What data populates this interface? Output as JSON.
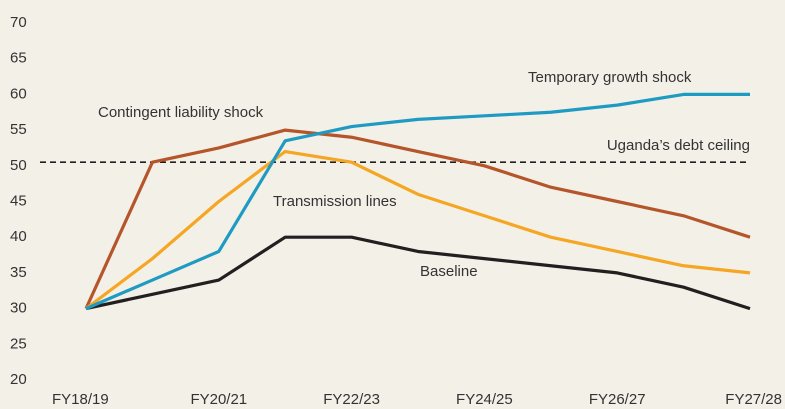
{
  "chart_data": {
    "type": "line",
    "categories": [
      "FY18/19",
      null,
      "FY20/21",
      null,
      "FY22/23",
      null,
      "FY24/25",
      null,
      "FY26/27",
      null,
      "FY27/28"
    ],
    "series": [
      {
        "name": "Baseline",
        "color": "#231f20",
        "values": [
          30,
          32,
          34,
          40,
          40,
          38,
          37,
          36,
          35,
          33,
          30
        ]
      },
      {
        "name": "Contingent liability shock",
        "color": "#b5552a",
        "values": [
          30,
          50.5,
          52.5,
          55,
          54,
          52,
          50,
          47,
          45,
          43,
          40
        ]
      },
      {
        "name": "Transmission lines",
        "color": "#f5a623",
        "values": [
          30,
          37,
          45,
          52,
          50.5,
          46,
          43,
          40,
          38,
          36,
          35
        ]
      },
      {
        "name": "Temporary growth shock",
        "color": "#1f9bc3",
        "values": [
          30,
          34,
          38,
          53.5,
          55.5,
          56.5,
          57,
          57.5,
          58.5,
          60,
          60
        ]
      }
    ],
    "reference_line": {
      "label": "Uganda’s debt ceiling",
      "value": 50.5,
      "color": "#231f20"
    },
    "ylim": [
      20,
      70
    ],
    "yticks": [
      20,
      25,
      30,
      35,
      40,
      45,
      50,
      55,
      60,
      65,
      70
    ],
    "grid": false
  }
}
